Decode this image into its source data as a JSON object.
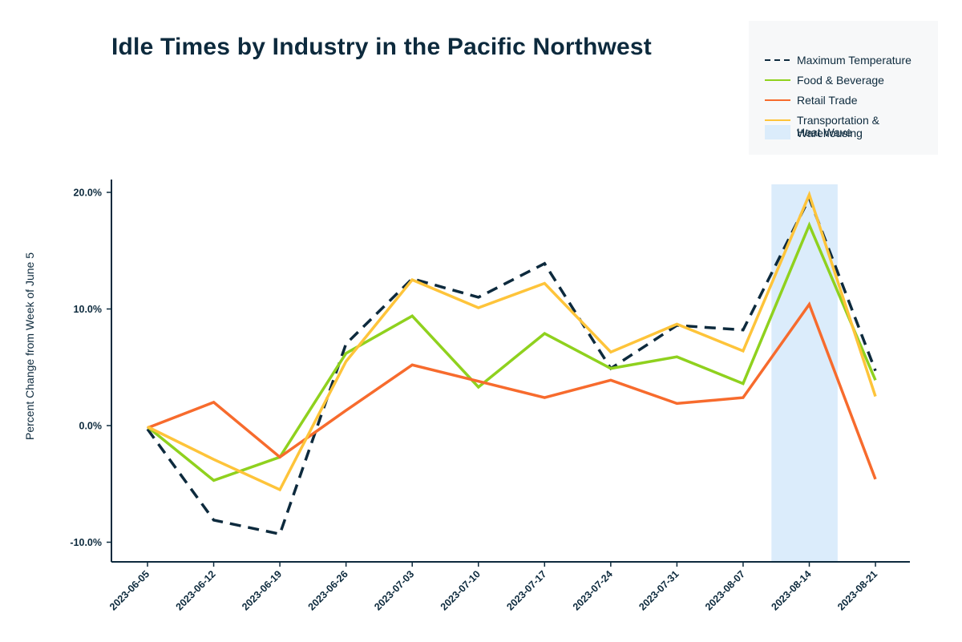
{
  "chart_data": {
    "type": "line",
    "title": "Idle Times by Industry in the Pacific Northwest",
    "xlabel": "",
    "ylabel": "Percent Change from Week of June 5",
    "x": [
      "2023-06-05",
      "2023-06-12",
      "2023-06-19",
      "2023-06-26",
      "2023-07-03",
      "2023-07-10",
      "2023-07-17",
      "2023-07-24",
      "2023-07-31",
      "2023-08-07",
      "2023-08-14",
      "2023-08-21"
    ],
    "yticks": [
      -10,
      0,
      10,
      20
    ],
    "ytick_labels": [
      "-10.0%",
      "0.0%",
      "10.0%",
      "20.0%"
    ],
    "ylim": [
      -11.6,
      20.7
    ],
    "grid": false,
    "legend_position": "top-right",
    "series": [
      {
        "name": "Maximum Temperature",
        "style": "dashed",
        "color": "#0d2a3d",
        "values": [
          -0.3,
          -8.1,
          -9.3,
          7.0,
          12.6,
          11.0,
          13.9,
          4.9,
          8.6,
          8.2,
          19.5,
          4.7
        ]
      },
      {
        "name": "Food & Beverage",
        "style": "solid",
        "color": "#8fd11e",
        "values": [
          -0.1,
          -4.7,
          -2.7,
          6.2,
          9.4,
          3.3,
          7.9,
          4.9,
          5.9,
          3.6,
          17.2,
          3.9
        ]
      },
      {
        "name": "Retail Trade",
        "style": "solid",
        "color": "#f76b2d",
        "values": [
          -0.2,
          2.0,
          -2.7,
          1.3,
          5.2,
          3.8,
          2.4,
          3.9,
          1.9,
          2.4,
          10.4,
          -4.6
        ]
      },
      {
        "name": "Transportation & Warehousing",
        "style": "solid",
        "color": "#fec43a",
        "values": [
          -0.1,
          -2.9,
          -5.5,
          5.5,
          12.5,
          10.1,
          12.2,
          6.3,
          8.7,
          6.4,
          19.8,
          2.5
        ]
      }
    ],
    "highlight": {
      "name": "Heat Wave",
      "color": "#dbecfb",
      "x_start": "2023-08-10",
      "x_end": "2023-08-17"
    }
  },
  "legend": {
    "items": [
      {
        "label": "Maximum Temperature",
        "kind": "dashed-line",
        "color": "#0d2a3d"
      },
      {
        "label": "Food & Beverage",
        "kind": "line",
        "color": "#8fd11e"
      },
      {
        "label": "Retail Trade",
        "kind": "line",
        "color": "#f76b2d"
      },
      {
        "label": "Transportation & Warehousing",
        "kind": "line",
        "color": "#fec43a"
      },
      {
        "label": "Heat Wave",
        "kind": "area",
        "color": "#dbecfb"
      }
    ]
  },
  "colors": {
    "axis": "#0d2a3d",
    "legend_bg": "#f7f8f9"
  }
}
